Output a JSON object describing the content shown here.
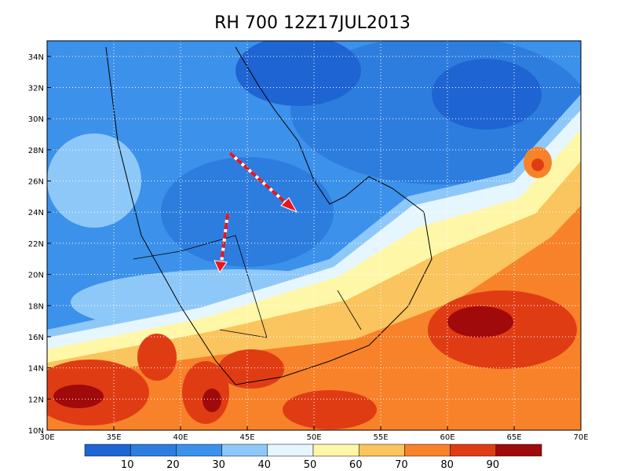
{
  "title": "RH 700 12Z17JUL2013",
  "map": {
    "lon_range": [
      30,
      70
    ],
    "lat_range": [
      10,
      35
    ],
    "lon_ticks": [
      {
        "value": 30,
        "label": "30E"
      },
      {
        "value": 35,
        "label": "35E"
      },
      {
        "value": 40,
        "label": "40E"
      },
      {
        "value": 45,
        "label": "45E"
      },
      {
        "value": 50,
        "label": "50E"
      },
      {
        "value": 55,
        "label": "55E"
      },
      {
        "value": 60,
        "label": "60E"
      },
      {
        "value": 65,
        "label": "65E"
      },
      {
        "value": 70,
        "label": "70E"
      }
    ],
    "lat_ticks": [
      {
        "value": 10,
        "label": "10N"
      },
      {
        "value": 12,
        "label": "12N"
      },
      {
        "value": 14,
        "label": "14N"
      },
      {
        "value": 16,
        "label": "16N"
      },
      {
        "value": 18,
        "label": "18N"
      },
      {
        "value": 20,
        "label": "20N"
      },
      {
        "value": 22,
        "label": "22N"
      },
      {
        "value": 24,
        "label": "24N"
      },
      {
        "value": 26,
        "label": "26N"
      },
      {
        "value": 28,
        "label": "28N"
      },
      {
        "value": 30,
        "label": "30N"
      },
      {
        "value": 32,
        "label": "32N"
      },
      {
        "value": 34,
        "label": "34N"
      }
    ]
  },
  "colorbar": {
    "levels": [
      10,
      20,
      30,
      40,
      50,
      60,
      70,
      80,
      90
    ],
    "colors": [
      "#1e64d2",
      "#2d7ddf",
      "#3c91ea",
      "#8ec8f8",
      "#e6f6ff",
      "#fff7a8",
      "#fac45e",
      "#f8822a",
      "#e03c14",
      "#a00a0a"
    ]
  }
}
